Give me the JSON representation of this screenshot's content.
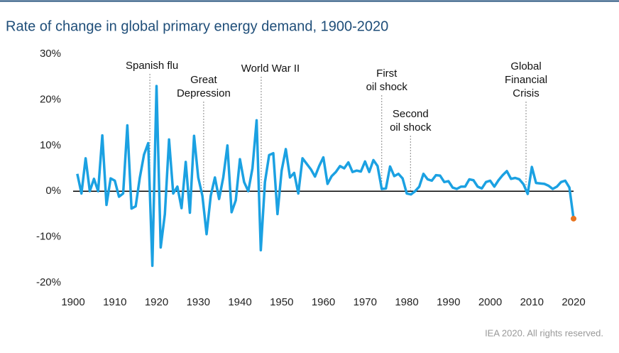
{
  "chart_data": {
    "type": "line",
    "title": "Rate of change in global primary energy demand, 1900-2020",
    "footnote": "IEA 2020. All rights reserved.",
    "x": [
      1901,
      1902,
      1903,
      1904,
      1905,
      1906,
      1907,
      1908,
      1909,
      1910,
      1911,
      1912,
      1913,
      1914,
      1915,
      1916,
      1917,
      1918,
      1919,
      1920,
      1921,
      1922,
      1923,
      1924,
      1925,
      1926,
      1927,
      1928,
      1929,
      1930,
      1931,
      1932,
      1933,
      1934,
      1935,
      1936,
      1937,
      1938,
      1939,
      1940,
      1941,
      1942,
      1943,
      1944,
      1945,
      1946,
      1947,
      1948,
      1949,
      1950,
      1951,
      1952,
      1953,
      1954,
      1955,
      1956,
      1957,
      1958,
      1959,
      1960,
      1961,
      1962,
      1963,
      1964,
      1965,
      1966,
      1967,
      1968,
      1969,
      1970,
      1971,
      1972,
      1973,
      1974,
      1975,
      1976,
      1977,
      1978,
      1979,
      1980,
      1981,
      1982,
      1983,
      1984,
      1985,
      1986,
      1987,
      1988,
      1989,
      1990,
      1991,
      1992,
      1993,
      1994,
      1995,
      1996,
      1997,
      1998,
      1999,
      2000,
      2001,
      2002,
      2003,
      2004,
      2005,
      2006,
      2007,
      2008,
      2009,
      2010,
      2011,
      2012,
      2013,
      2014,
      2015,
      2016,
      2017,
      2018,
      2019,
      2020
    ],
    "series": [
      {
        "color": "#1ba1e2",
        "last_point_color": "#e8731e",
        "values": [
          3.8,
          -0.5,
          7.2,
          0,
          2.7,
          0,
          12.2,
          -3,
          2.8,
          2.3,
          -1.2,
          -0.5,
          14.4,
          -3.8,
          -3.3,
          3,
          8,
          10.5,
          -16.3,
          23,
          -12.3,
          -5,
          11.3,
          -0.5,
          1,
          -3.7,
          6.4,
          -4.7,
          12.1,
          3,
          -1,
          -9.4,
          -1,
          3,
          -1.7,
          3,
          10,
          -4.6,
          -2,
          7,
          2,
          0,
          5,
          15.5,
          -12.9,
          2,
          7.9,
          8.3,
          -5,
          4.5,
          9.2,
          3,
          4,
          -0.5,
          7.2,
          6,
          4.8,
          3.2,
          5.5,
          7.4,
          1.6,
          3.3,
          4.2,
          5.5,
          5,
          6.3,
          4.2,
          4.5,
          4.3,
          6.5,
          4.2,
          6.8,
          5.5,
          0.5,
          0.6,
          5.4,
          3.3,
          3.8,
          2.8,
          -0.5,
          -0.7,
          0,
          1,
          3.8,
          2.6,
          2.3,
          3.5,
          3.4,
          2,
          2.2,
          0.8,
          0.5,
          1,
          1,
          2.6,
          2.4,
          1,
          0.6,
          2,
          2.3,
          1,
          2.4,
          3.5,
          4.4,
          2.7,
          2.9,
          2.6,
          1.5,
          -0.6,
          5.3,
          1.8,
          1.7,
          1.6,
          1.2,
          0.5,
          1,
          2,
          2.3,
          0.8,
          -6
        ]
      }
    ],
    "xlim": [
      1900,
      2020
    ],
    "xticks": [
      1900,
      1910,
      1920,
      1930,
      1940,
      1950,
      1960,
      1970,
      1980,
      1990,
      2000,
      2010,
      2020
    ],
    "ylim": [
      -20,
      30
    ],
    "yticks": [
      {
        "value": -20,
        "label": "-20%"
      },
      {
        "value": -10,
        "label": "-10%"
      },
      {
        "value": 0,
        "label": "0%"
      },
      {
        "value": 10,
        "label": "10%"
      },
      {
        "value": 20,
        "label": "20%"
      },
      {
        "value": 30,
        "label": "30%"
      }
    ],
    "annotations": [
      {
        "x": 1918.4,
        "lines": [
          "Spanish flu"
        ]
      },
      {
        "x": 1931.3,
        "lines": [
          "Great",
          "Depression"
        ]
      },
      {
        "x": 1945.1,
        "lines": [
          "World War II"
        ]
      },
      {
        "x": 1974,
        "lines": [
          "First",
          "oil shock"
        ]
      },
      {
        "x": 1980.9,
        "lines": [
          "Second",
          "oil shock"
        ]
      },
      {
        "x": 2008.6,
        "lines": [
          "Global",
          "Financial",
          "Crisis"
        ]
      }
    ]
  }
}
